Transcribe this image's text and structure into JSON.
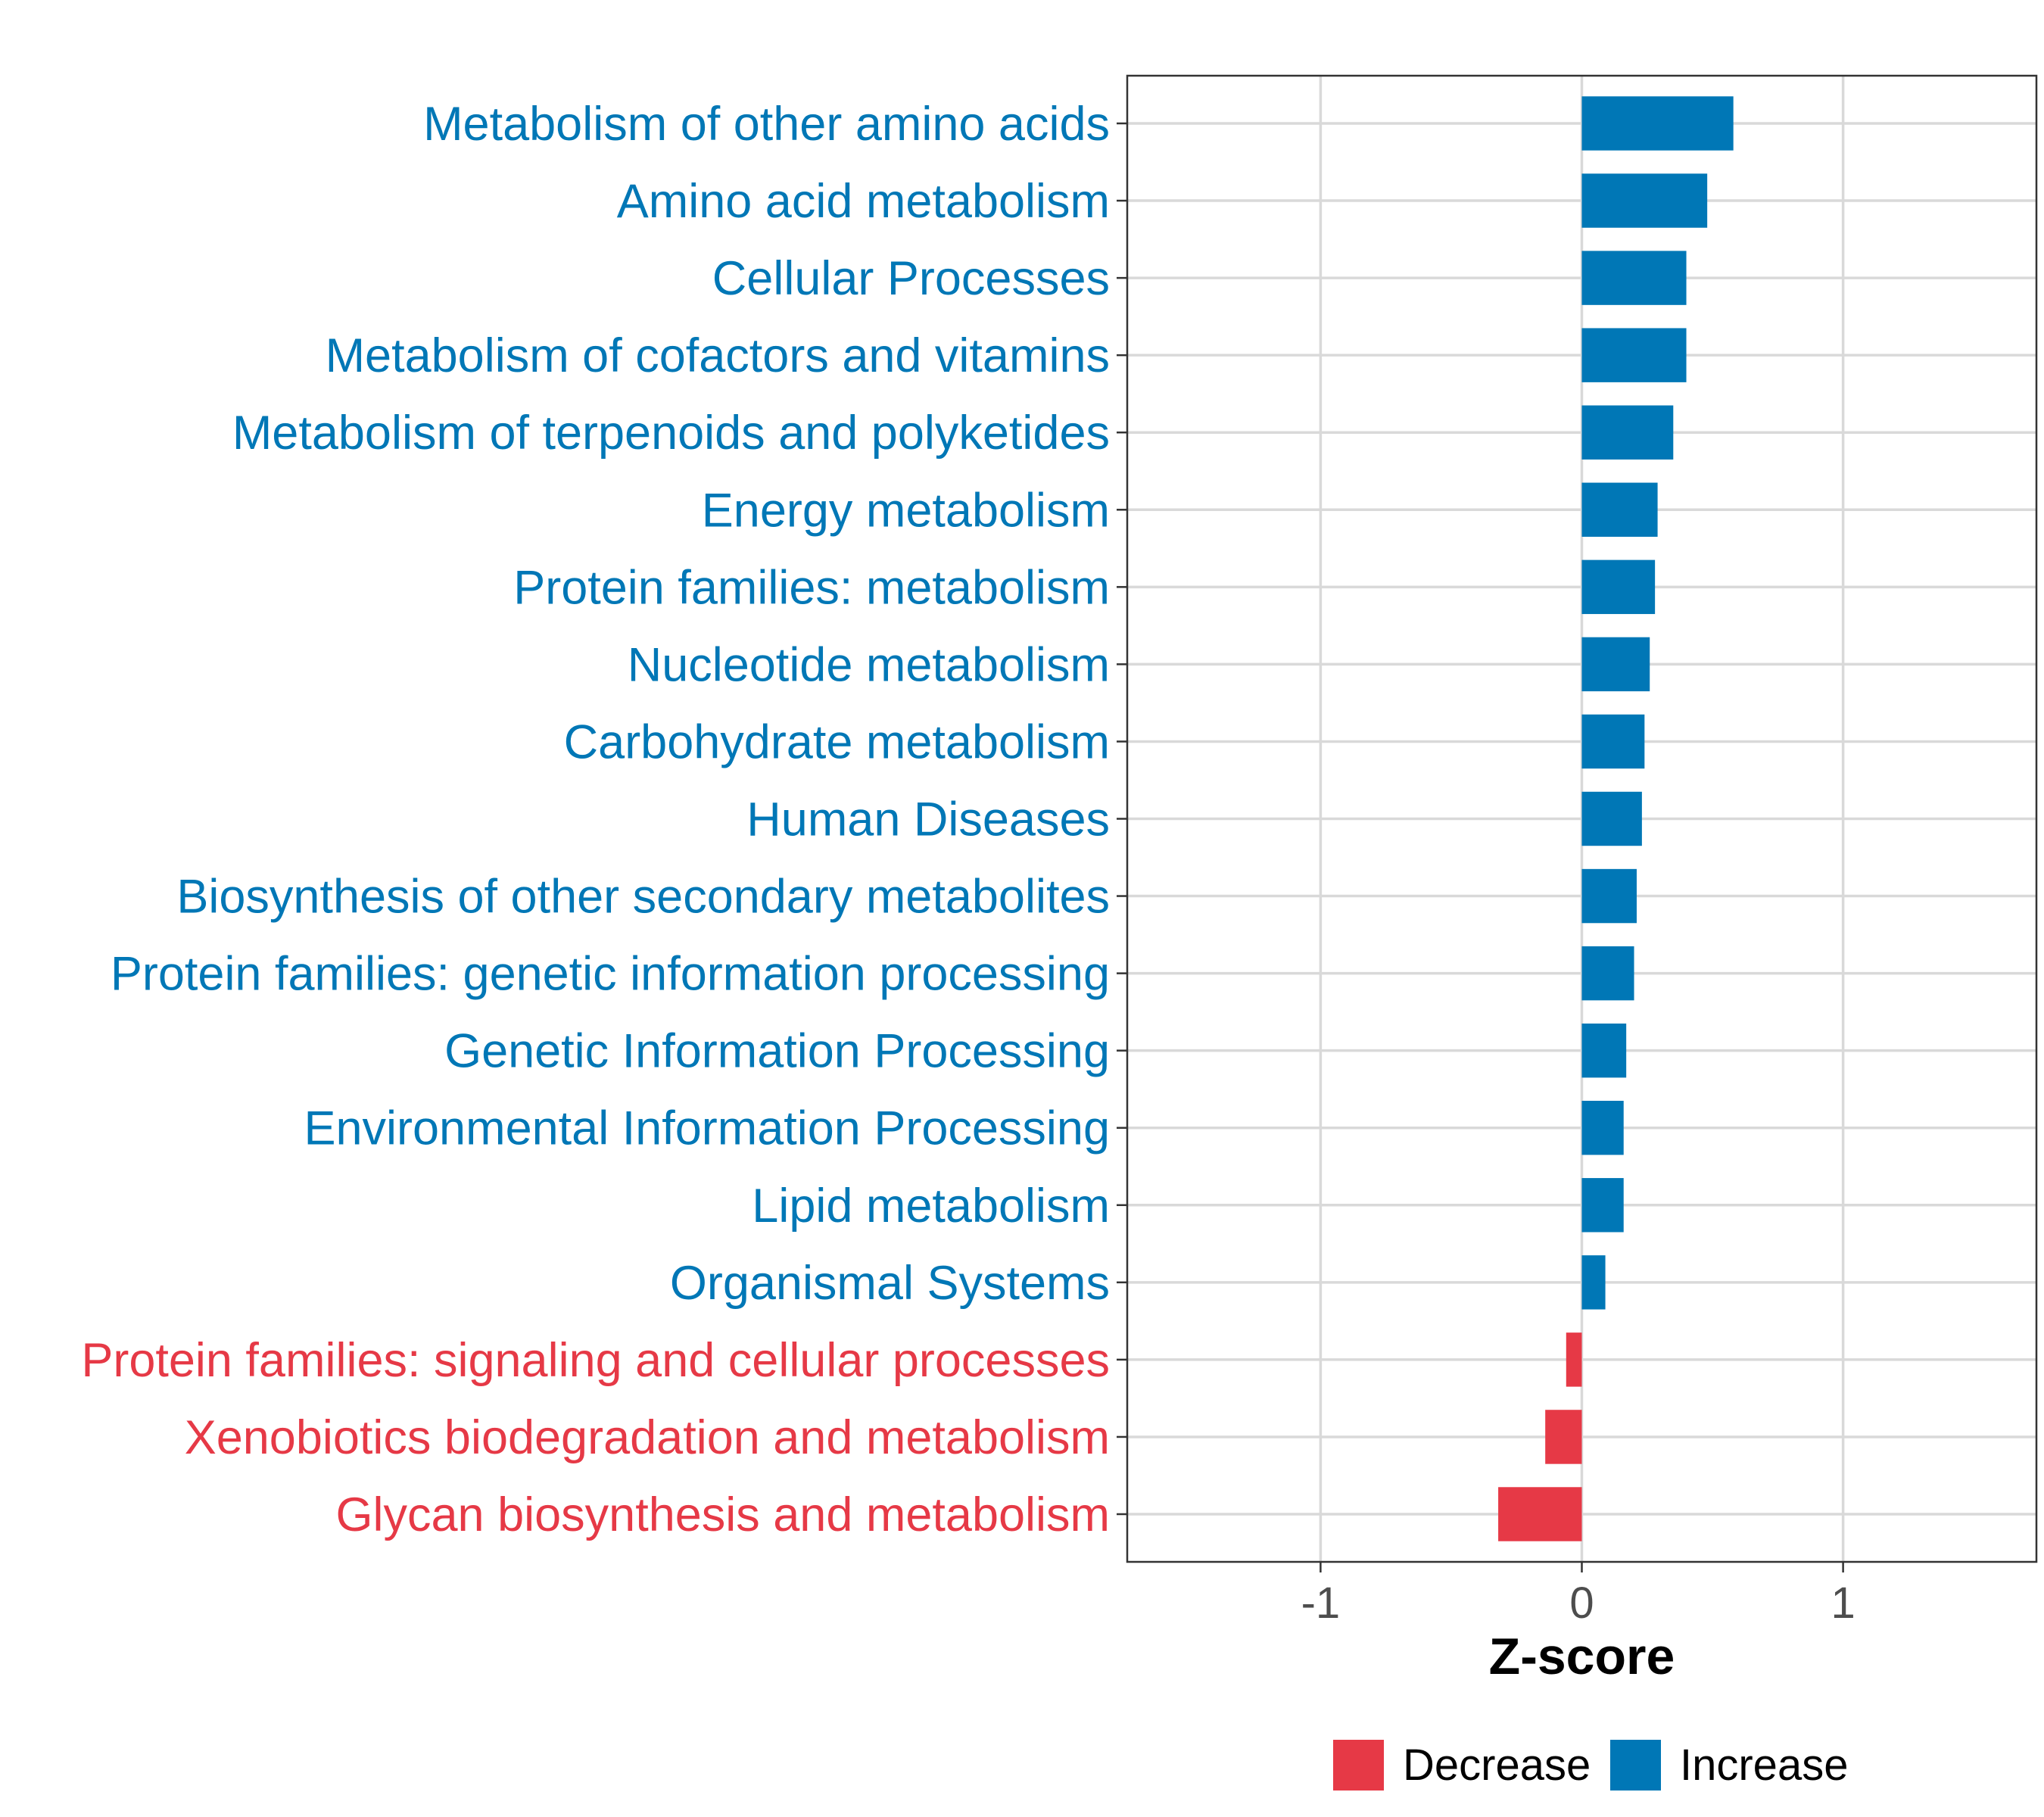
{
  "chart_data": {
    "type": "bar",
    "orientation": "horizontal",
    "xlabel": "Z-score",
    "xlim": [
      -1.74,
      1.74
    ],
    "xticks": [
      -1,
      0,
      1
    ],
    "grid": true,
    "legend_position": "bottom",
    "colors": {
      "Decrease": "#e63946",
      "Increase": "#0077b6"
    },
    "legend": [
      {
        "label": "Decrease",
        "color": "#e63946"
      },
      {
        "label": "Increase",
        "color": "#0077b6"
      }
    ],
    "categories": [
      "Metabolism of other amino acids",
      "Amino acid metabolism",
      "Cellular Processes",
      "Metabolism of cofactors and vitamins",
      "Metabolism of terpenoids and polyketides",
      "Energy metabolism",
      "Protein families: metabolism",
      "Nucleotide metabolism",
      "Carbohydrate metabolism",
      "Human Diseases",
      "Biosynthesis of other secondary metabolites",
      "Protein families: genetic information processing",
      "Genetic Information Processing",
      "Environmental Information Processing",
      "Lipid metabolism",
      "Organismal Systems",
      "Protein families: signaling and cellular processes",
      "Xenobiotics biodegradation and metabolism",
      "Glycan biosynthesis and metabolism"
    ],
    "values": [
      0.58,
      0.48,
      0.4,
      0.4,
      0.35,
      0.29,
      0.28,
      0.26,
      0.24,
      0.23,
      0.21,
      0.2,
      0.17,
      0.16,
      0.16,
      0.09,
      -0.06,
      -0.14,
      -0.32
    ],
    "direction": [
      "Increase",
      "Increase",
      "Increase",
      "Increase",
      "Increase",
      "Increase",
      "Increase",
      "Increase",
      "Increase",
      "Increase",
      "Increase",
      "Increase",
      "Increase",
      "Increase",
      "Increase",
      "Increase",
      "Decrease",
      "Decrease",
      "Decrease"
    ]
  }
}
